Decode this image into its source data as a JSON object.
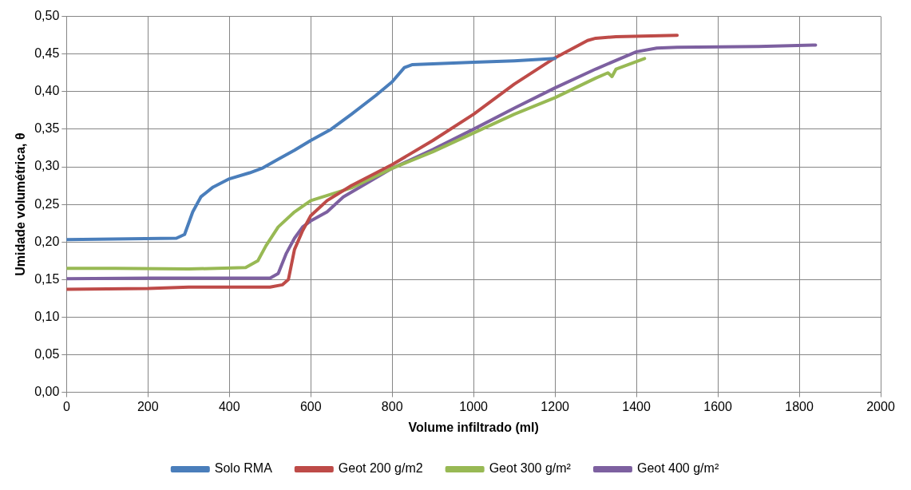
{
  "chart_data": {
    "type": "line",
    "xlabel": "Volume infiltrado (ml)",
    "ylabel": "Umidade volumétrica, θ",
    "xlim": [
      0,
      2000
    ],
    "xticks": [
      0,
      200,
      400,
      600,
      800,
      1000,
      1200,
      1400,
      1600,
      1800,
      2000
    ],
    "ylim": [
      0,
      0.5
    ],
    "yticks": [
      {
        "value": 0,
        "label": "0,00"
      },
      {
        "value": 0.05,
        "label": "0,05"
      },
      {
        "value": 0.1,
        "label": "0,10"
      },
      {
        "value": 0.15,
        "label": "0,15"
      },
      {
        "value": 0.2,
        "label": "0,20"
      },
      {
        "value": 0.25,
        "label": "0,25"
      },
      {
        "value": 0.3,
        "label": "0,30"
      },
      {
        "value": 0.35,
        "label": "0,35"
      },
      {
        "value": 0.4,
        "label": "0,40"
      },
      {
        "value": 0.45,
        "label": "0,45"
      },
      {
        "value": 0.5,
        "label": "0,50"
      }
    ],
    "grid": true,
    "legend": "bottom",
    "marker": "none",
    "line_style": "solid",
    "series": [
      {
        "name": "Solo RMA",
        "color": "#4a7ebb",
        "x": [
          0,
          270,
          290,
          310,
          330,
          360,
          400,
          450,
          480,
          520,
          560,
          600,
          650,
          700,
          760,
          800,
          830,
          850,
          900,
          1000,
          1100,
          1200
        ],
        "values": [
          0.203,
          0.205,
          0.21,
          0.24,
          0.26,
          0.273,
          0.284,
          0.292,
          0.298,
          0.31,
          0.322,
          0.335,
          0.35,
          0.37,
          0.395,
          0.413,
          0.432,
          0.436,
          0.437,
          0.439,
          0.441,
          0.444
        ]
      },
      {
        "name": "Geot 200 g/m2",
        "color": "#be4b48",
        "x": [
          0,
          200,
          300,
          500,
          530,
          545,
          560,
          580,
          600,
          640,
          700,
          800,
          900,
          1000,
          1100,
          1200,
          1280,
          1300,
          1350,
          1500
        ],
        "values": [
          0.137,
          0.138,
          0.14,
          0.14,
          0.143,
          0.15,
          0.19,
          0.215,
          0.235,
          0.255,
          0.275,
          0.303,
          0.335,
          0.37,
          0.41,
          0.445,
          0.468,
          0.471,
          0.473,
          0.475
        ]
      },
      {
        "name": "Geot 300 g/m²",
        "color": "#98b954",
        "x": [
          0,
          120,
          300,
          440,
          470,
          490,
          520,
          560,
          600,
          700,
          800,
          900,
          1000,
          1100,
          1200,
          1300,
          1330,
          1340,
          1350,
          1420
        ],
        "values": [
          0.165,
          0.165,
          0.164,
          0.166,
          0.175,
          0.195,
          0.22,
          0.24,
          0.255,
          0.272,
          0.298,
          0.32,
          0.345,
          0.37,
          0.392,
          0.418,
          0.425,
          0.42,
          0.43,
          0.444
        ]
      },
      {
        "name": "Geot 400 g/m²",
        "color": "#7d60a0",
        "x": [
          0,
          200,
          300,
          500,
          520,
          540,
          560,
          580,
          600,
          640,
          680,
          800,
          900,
          1000,
          1100,
          1200,
          1300,
          1400,
          1450,
          1500,
          1700,
          1840
        ],
        "values": [
          0.151,
          0.152,
          0.152,
          0.152,
          0.158,
          0.185,
          0.205,
          0.22,
          0.228,
          0.24,
          0.26,
          0.298,
          0.323,
          0.35,
          0.378,
          0.405,
          0.43,
          0.453,
          0.458,
          0.459,
          0.46,
          0.462
        ]
      }
    ]
  }
}
